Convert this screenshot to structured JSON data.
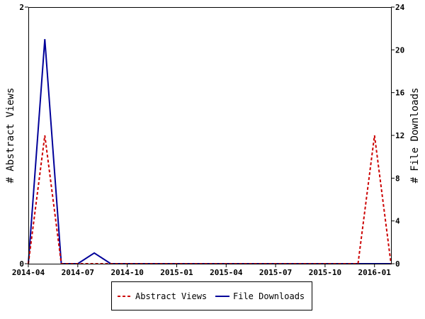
{
  "chart_data": {
    "type": "line",
    "x": [
      "2014-04",
      "2014-05",
      "2014-06",
      "2014-07",
      "2014-08",
      "2014-09",
      "2014-10",
      "2014-11",
      "2014-12",
      "2015-01",
      "2015-02",
      "2015-03",
      "2015-04",
      "2015-05",
      "2015-06",
      "2015-07",
      "2015-08",
      "2015-09",
      "2015-10",
      "2015-11",
      "2015-12",
      "2016-01",
      "2016-02"
    ],
    "x_ticks": [
      "2014-04",
      "2014-07",
      "2014-10",
      "2015-01",
      "2015-04",
      "2015-07",
      "2015-10",
      "2016-01"
    ],
    "ylabel": "# Abstract Views",
    "y2label": "# File Downloads",
    "ylim": [
      0,
      2
    ],
    "y_ticks": [
      "0",
      "2"
    ],
    "y2lim": [
      0,
      24
    ],
    "y2_ticks": [
      "0",
      "4",
      "8",
      "12",
      "16",
      "20",
      "24"
    ],
    "grid": false,
    "legend_position": "bottom",
    "series": [
      {
        "name": "Abstract Views",
        "axis": "left",
        "color": "#cc0000",
        "style": "dashed",
        "values": [
          0,
          1,
          0,
          0,
          0,
          0,
          0,
          0,
          0,
          0,
          0,
          0,
          0,
          0,
          0,
          0,
          0,
          0,
          0,
          0,
          0,
          1,
          0
        ]
      },
      {
        "name": "File Downloads",
        "axis": "right",
        "color": "#000099",
        "style": "solid",
        "values": [
          0,
          21,
          0,
          0,
          1,
          0,
          0,
          0,
          0,
          0,
          0,
          0,
          0,
          0,
          0,
          0,
          0,
          0,
          0,
          0,
          0,
          0,
          0
        ]
      }
    ]
  }
}
